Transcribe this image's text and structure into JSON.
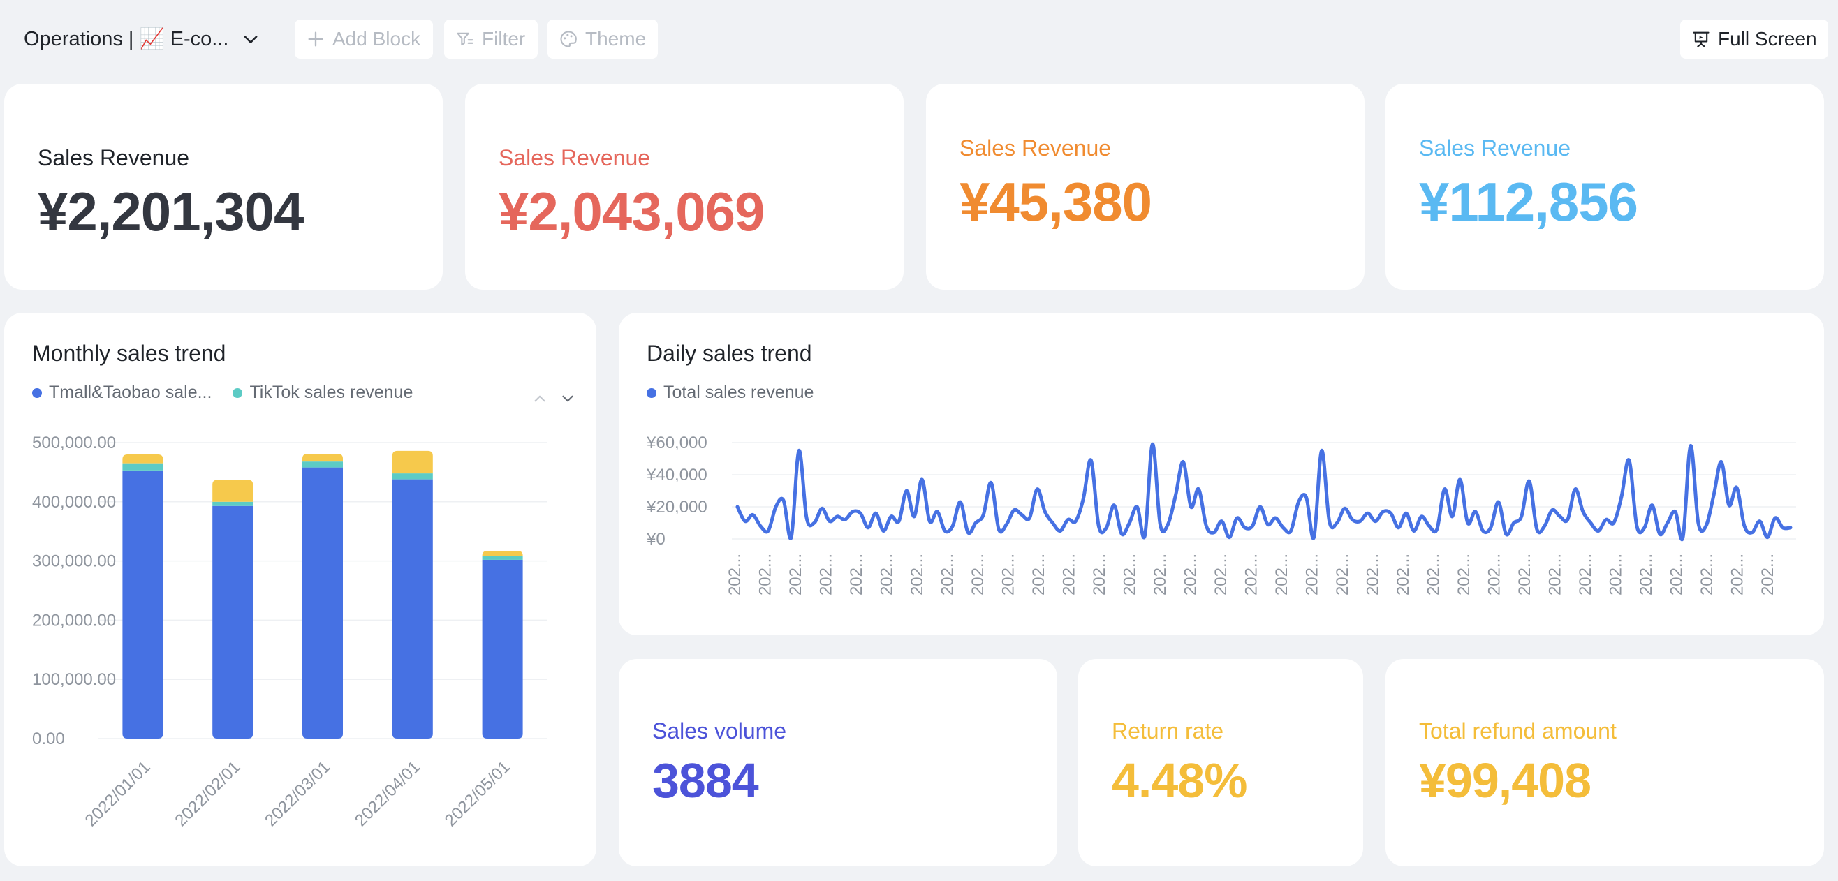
{
  "toolbar": {
    "title": "Operations | 📈 E-co...",
    "add_block": "Add Block",
    "filter": "Filter",
    "theme": "Theme",
    "full_screen": "Full Screen"
  },
  "kpis": [
    {
      "label": "Sales Revenue",
      "value": "¥2,201,304",
      "color": "#333740"
    },
    {
      "label": "Sales Revenue",
      "value": "¥2,043,069",
      "color": "#e5675c"
    },
    {
      "label": "Sales Revenue",
      "value": "¥45,380",
      "color": "#f08b30"
    },
    {
      "label": "Sales Revenue",
      "value": "¥112,856",
      "color": "#5ab9f2"
    },
    {
      "label": "Sales volume",
      "value": "3884",
      "color": "#4c53d9"
    },
    {
      "label": "Return rate",
      "value": "4.48%",
      "color": "#f4bd3a"
    },
    {
      "label": "Total refund amount",
      "value": "¥99,408",
      "color": "#f4bd3a"
    }
  ],
  "monthly": {
    "title": "Monthly sales trend",
    "legend": [
      {
        "label": "Tmall&Taobao sale...",
        "color": "#4671e3"
      },
      {
        "label": "TikTok sales revenue",
        "color": "#5ccbc5"
      }
    ]
  },
  "daily": {
    "title": "Daily sales trend",
    "legend": [
      {
        "label": "Total sales revenue",
        "color": "#4671e3"
      }
    ]
  },
  "chart_data": [
    {
      "type": "bar",
      "stacked": true,
      "title": "Monthly sales trend",
      "categories": [
        "2022/01/01",
        "2022/02/01",
        "2022/03/01",
        "2022/04/01",
        "2022/05/01"
      ],
      "series": [
        {
          "name": "Tmall&Taobao sale...",
          "color": "#4671e3",
          "values": [
            453000,
            393000,
            458000,
            438000,
            302000
          ]
        },
        {
          "name": "TikTok sales revenue",
          "color": "#5ccbc5",
          "values": [
            12000,
            7000,
            10000,
            10000,
            6000
          ]
        },
        {
          "color": "#f6c94c",
          "values": [
            15000,
            37000,
            13000,
            38000,
            9000
          ]
        }
      ],
      "yticks": [
        "0.00",
        "100,000.00",
        "200,000.00",
        "300,000.00",
        "400,000.00",
        "500,000.00"
      ],
      "ylim": [
        0,
        500000
      ],
      "grid": true,
      "legend_position": "top-left"
    },
    {
      "type": "line",
      "title": "Daily sales trend",
      "series": [
        {
          "name": "Total sales revenue",
          "color": "#4671e3",
          "values": [
            20000,
            11000,
            15000,
            8000,
            5000,
            20000,
            24000,
            1000,
            55000,
            13000,
            10000,
            19000,
            11000,
            14000,
            12000,
            17000,
            16000,
            7000,
            16000,
            5000,
            14000,
            11000,
            30000,
            14000,
            37000,
            11000,
            17000,
            5000,
            8000,
            23000,
            4000,
            10000,
            15000,
            35000,
            6000,
            9000,
            18000,
            15000,
            13000,
            31000,
            17000,
            10000,
            5000,
            12000,
            11000,
            25000,
            49000,
            8000,
            7000,
            21000,
            3000,
            10000,
            20000,
            2000,
            59000,
            9000,
            9000,
            27000,
            48000,
            20000,
            31000,
            8000,
            4000,
            11000,
            1000,
            13000,
            7000,
            8000,
            20000,
            9000,
            13000,
            7000,
            5000,
            23000,
            26000,
            1000,
            55000,
            11000,
            10000,
            19000,
            12000,
            11000,
            16000,
            11000,
            17000,
            16000,
            7000,
            16000,
            5000,
            14000,
            8000,
            6000,
            31000,
            14000,
            37000,
            10000,
            17000,
            5000,
            7000,
            23000,
            3000,
            10000,
            14000,
            36000,
            6000,
            8000,
            18000,
            14000,
            12000,
            31000,
            17000,
            10000,
            5000,
            12000,
            10000,
            26000,
            49000,
            8000,
            7000,
            21000,
            3000,
            10000,
            17000,
            1000,
            58000,
            10000,
            8000,
            27000,
            48000,
            21000,
            32000,
            8000,
            4000,
            11000,
            1000,
            13000,
            7000,
            7000
          ]
        }
      ],
      "yticks": [
        "¥0",
        "¥20,000",
        "¥40,000",
        "¥60,000"
      ],
      "ylim": [
        0,
        60000
      ],
      "x_tick_label": "202...",
      "x_tick_count": 35,
      "grid": true,
      "legend_position": "top-left"
    }
  ]
}
